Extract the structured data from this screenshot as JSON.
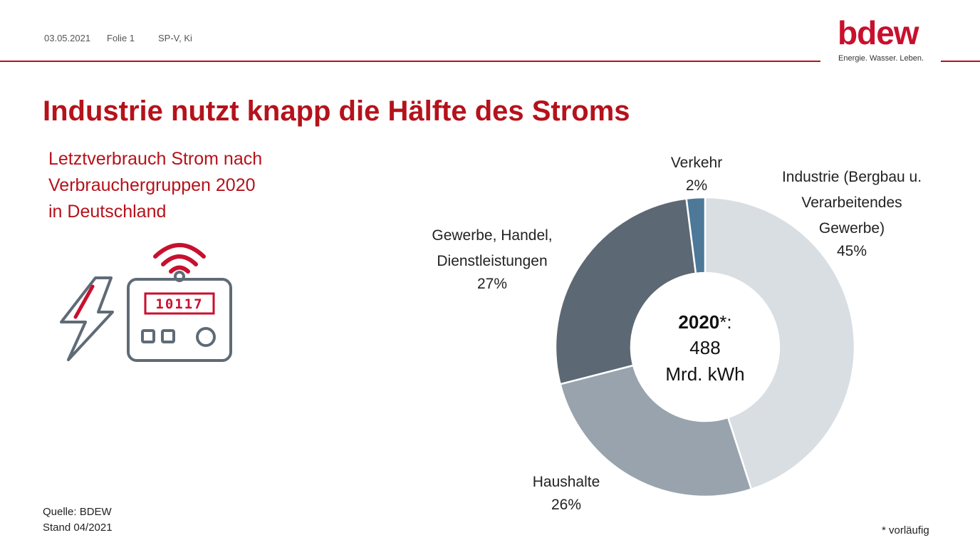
{
  "header": {
    "date": "03.05.2021",
    "slide": "Folie 1",
    "author": "SP-V, Ki"
  },
  "logo": {
    "word": "bdew",
    "tagline": "Energie. Wasser. Leben."
  },
  "title": "Industrie nutzt knapp die Hälfte des Stroms",
  "subtitle_lines": [
    "Letztverbrauch Strom nach",
    "Verbrauchergruppen 2020",
    "in Deutschland"
  ],
  "meter_display": "10117",
  "source": {
    "line1": "Quelle: BDEW",
    "line2": "Stand 04/2021"
  },
  "footnote": "* vorläufig",
  "colors": {
    "brand_red": "#b5121b",
    "icon_gray": "#5f6b76",
    "slice_industrie": "#d9dee3",
    "slice_haushalte": "#98a3ad",
    "slice_gewerbe": "#5c6873",
    "slice_verkehr": "#4d7898"
  },
  "chart_data": {
    "type": "pie",
    "donut": true,
    "title": "",
    "center_label": {
      "year": "2020",
      "suffix": "*:",
      "value": "488",
      "unit": "Mrd. kWh"
    },
    "slices": [
      {
        "label_lines": [
          "Industrie (Bergbau u.",
          "Verarbeitendes",
          "Gewerbe)"
        ],
        "value": 45,
        "display": "45%",
        "color": "#d9dee3"
      },
      {
        "label_lines": [
          "Haushalte"
        ],
        "value": 26,
        "display": "26%",
        "color": "#98a3ad"
      },
      {
        "label_lines": [
          "Gewerbe, Handel,",
          "Dienstleistungen"
        ],
        "value": 27,
        "display": "27%",
        "color": "#5c6873"
      },
      {
        "label_lines": [
          "Verkehr"
        ],
        "value": 2,
        "display": "2%",
        "color": "#4d7898"
      }
    ]
  }
}
